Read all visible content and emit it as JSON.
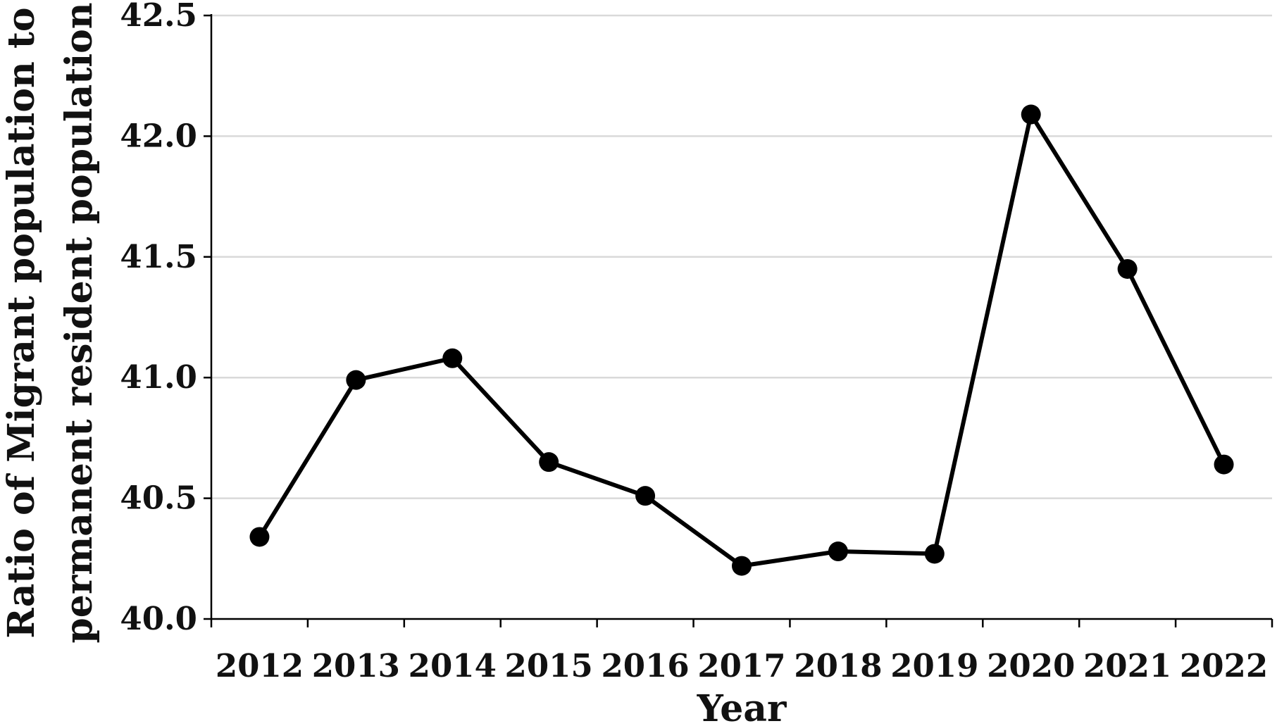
{
  "chart_data": {
    "type": "line",
    "categories": [
      "2012",
      "2013",
      "2014",
      "2015",
      "2016",
      "2017",
      "2018",
      "2019",
      "2020",
      "2021",
      "2022"
    ],
    "series": [
      {
        "values": [
          40.34,
          40.99,
          41.08,
          40.65,
          40.51,
          40.22,
          40.28,
          40.27,
          42.09,
          41.45,
          40.64
        ],
        "color": "#000000"
      }
    ],
    "xlabel": "Year",
    "ylabel_lines": [
      "Ratio of Migrant population to",
      "permanent resident population"
    ],
    "ylim": [
      40.0,
      42.5
    ],
    "yticks": [
      "40.0",
      "40.5",
      "41.0",
      "41.5",
      "42.0",
      "42.5"
    ],
    "grid": "horizontal",
    "grid_color": "#d9d9d9",
    "line_color": "#000000",
    "marker": "filled-circle"
  }
}
